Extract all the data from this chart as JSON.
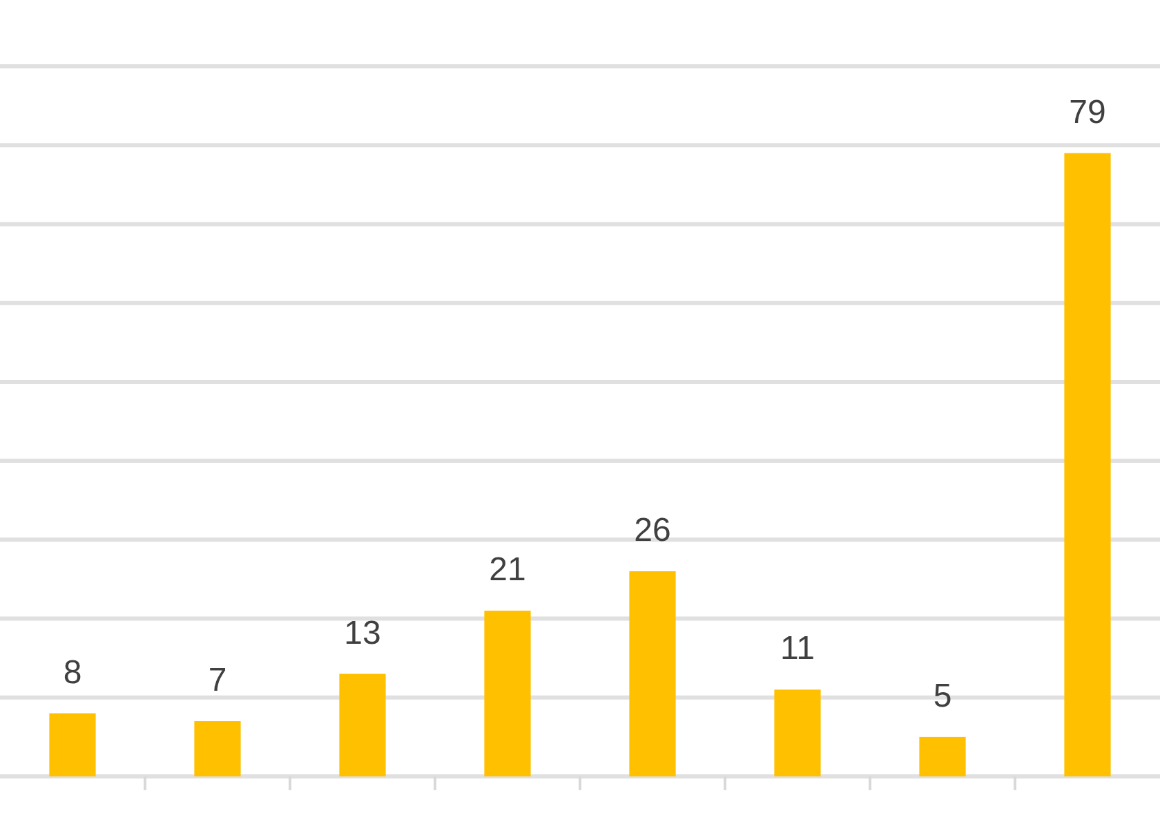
{
  "chart_data": {
    "type": "bar",
    "categories": [
      null,
      null,
      null,
      null,
      null,
      null,
      null,
      null
    ],
    "values": [
      8,
      7,
      13,
      21,
      26,
      11,
      5,
      79
    ],
    "color": "#ffc000",
    "data_labels": true,
    "ylim": [
      0,
      90
    ],
    "yticks": [
      {
        "value": 0,
        "label": null
      },
      {
        "value": 10,
        "label": null
      },
      {
        "value": 20,
        "label": null
      },
      {
        "value": 30,
        "label": null
      },
      {
        "value": 40,
        "label": null
      },
      {
        "value": 50,
        "label": null
      },
      {
        "value": 60,
        "label": null
      },
      {
        "value": 70,
        "label": null
      },
      {
        "value": 80,
        "label": null
      },
      {
        "value": 90,
        "label": null
      }
    ],
    "grid": true
  }
}
